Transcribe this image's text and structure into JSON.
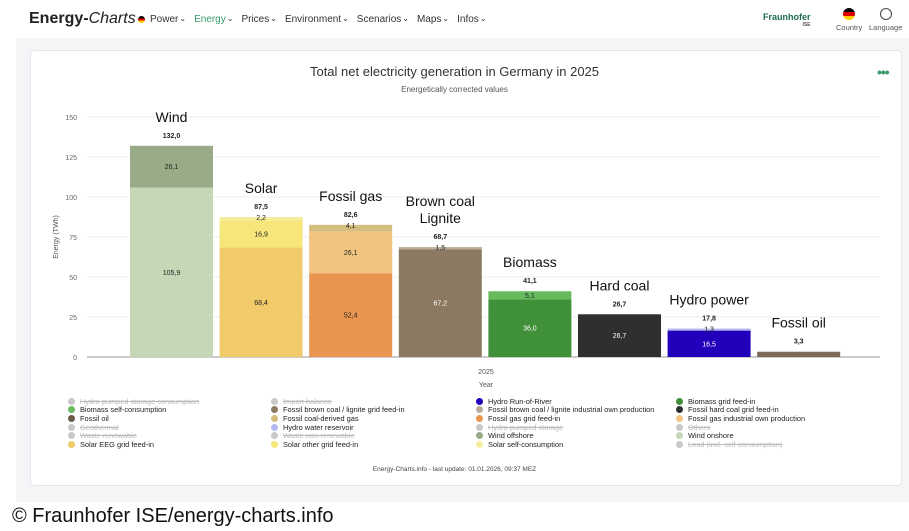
{
  "header": {
    "logo_main": "Energy-",
    "logo_italic": "Charts",
    "nav": [
      "Power",
      "Energy",
      "Prices",
      "Environment",
      "Scenarios",
      "Maps",
      "Infos"
    ],
    "active_nav": "Energy",
    "brand": "Fraunhofer",
    "brand_sub": "ISE",
    "country": "Country",
    "language": "Language"
  },
  "chart_data": {
    "type": "bar",
    "stacked": true,
    "title": "Total net electricity generation in Germany in 2025",
    "subtitle": "Energetically corrected values",
    "xlabel": "Year",
    "x_tick": "2025",
    "ylabel": "Energy (TWh)",
    "ylim": [
      0,
      150
    ],
    "yticks": [
      0,
      25,
      50,
      75,
      100,
      125,
      150
    ],
    "grid": true,
    "categories": [
      {
        "label": "Wind",
        "label2": "",
        "total": "132,0",
        "segments": [
          {
            "name": "Wind onshore",
            "value": 105.9,
            "label": "105,9",
            "color": "#c6d7b8"
          },
          {
            "name": "Wind offshore",
            "value": 26.1,
            "label": "26,1",
            "color": "#9aab88"
          }
        ]
      },
      {
        "label": "Solar",
        "label2": "",
        "total": "87,5",
        "segments": [
          {
            "name": "Solar EEG grid feed-in",
            "value": 68.4,
            "label": "68,4",
            "color": "#f1ca6a"
          },
          {
            "name": "Solar other grid feed-in",
            "value": 16.9,
            "label": "16,9",
            "color": "#f7e77a"
          },
          {
            "name": "Solar self-consumption",
            "value": 2.2,
            "label": "2,2",
            "color": "#f6ed9f"
          }
        ]
      },
      {
        "label": "Fossil gas",
        "label2": "",
        "total": "82,6",
        "segments": [
          {
            "name": "Fossil gas grid feed-in",
            "value": 52.4,
            "label": "52,4",
            "color": "#e8964f"
          },
          {
            "name": "Fossil gas industrial own production",
            "value": 26.1,
            "label": "26,1",
            "color": "#f1c480"
          },
          {
            "name": "Fossil coal-derived gas",
            "value": 4.1,
            "label": "4,1",
            "color": "#d5bd7d"
          }
        ]
      },
      {
        "label": "Brown coal",
        "label2": "Lignite",
        "total": "68,7",
        "segments": [
          {
            "name": "Fossil brown coal / lignite grid feed-in",
            "value": 67.2,
            "label": "67,2",
            "color": "#8c7961"
          },
          {
            "name": "Fossil brown coal / lignite industrial own production",
            "value": 1.5,
            "label": "1,5",
            "color": "#b8ad9a"
          }
        ]
      },
      {
        "label": "Biomass",
        "label2": "",
        "total": "41,1",
        "segments": [
          {
            "name": "Biomass grid feed-in",
            "value": 36.0,
            "label": "36,0",
            "color": "#409039"
          },
          {
            "name": "Biomass self-consumption",
            "value": 5.1,
            "label": "5,1",
            "color": "#67bb5d"
          }
        ]
      },
      {
        "label": "Hard coal",
        "label2": "",
        "total": "26,7",
        "segments": [
          {
            "name": "Fossil hard coal grid feed-in",
            "value": 26.7,
            "label": "26,7",
            "color": "#2f2f2f"
          }
        ]
      },
      {
        "label": "Hydro power",
        "label2": "",
        "total": "17,8",
        "segments": [
          {
            "name": "Hydro Run-of-River",
            "value": 16.5,
            "label": "16,5",
            "color": "#2200bb"
          },
          {
            "name": "Hydro water reservoir",
            "value": 1.3,
            "label": "1,3",
            "color": "#b4b9f0"
          }
        ]
      },
      {
        "label": "Fossil oil",
        "label2": "",
        "total": "3,3",
        "segments": [
          {
            "name": "Fossil oil",
            "value": 3.3,
            "label": "",
            "color": "#7a6a56"
          }
        ]
      }
    ],
    "legend": [
      {
        "name": "Hydro pumped storage consumption",
        "color": "#c8c8c8",
        "hidden": true
      },
      {
        "name": "Import balance",
        "color": "#c8c8c8",
        "hidden": true
      },
      {
        "name": "Hydro Run-of-River",
        "color": "#2200bb"
      },
      {
        "name": "Biomass grid feed-in",
        "color": "#409039"
      },
      {
        "name": "Biomass self-consumption",
        "color": "#67bb5d"
      },
      {
        "name": "Fossil brown coal / lignite grid feed-in",
        "color": "#8c7961"
      },
      {
        "name": "Fossil brown coal / lignite industrial own production",
        "color": "#b8ad9a"
      },
      {
        "name": "Fossil hard coal grid feed-in",
        "color": "#2f2f2f"
      },
      {
        "name": "Fossil oil",
        "color": "#6b5a48"
      },
      {
        "name": "Fossil coal-derived gas",
        "color": "#d5bd7d"
      },
      {
        "name": "Fossil gas grid feed-in",
        "color": "#e8964f"
      },
      {
        "name": "Fossil gas industrial own production",
        "color": "#f1c480"
      },
      {
        "name": "Geothermal",
        "color": "#c8c8c8",
        "hidden": true
      },
      {
        "name": "Hydro water reservoir",
        "color": "#b4b9f0"
      },
      {
        "name": "Hydro pumped storage",
        "color": "#c8c8c8",
        "hidden": true
      },
      {
        "name": "Others",
        "color": "#c8c8c8",
        "hidden": true
      },
      {
        "name": "Waste renewable",
        "color": "#c8c8c8",
        "hidden": true
      },
      {
        "name": "Waste non-renewable",
        "color": "#c8c8c8",
        "hidden": true
      },
      {
        "name": "Wind offshore",
        "color": "#9aab88"
      },
      {
        "name": "Wind onshore",
        "color": "#c6d7b8"
      },
      {
        "name": "Solar EEG grid feed-in",
        "color": "#f1ca6a"
      },
      {
        "name": "Solar other grid feed-in",
        "color": "#f7e77a"
      },
      {
        "name": "Solar self-consumption",
        "color": "#f6ed9f"
      },
      {
        "name": "Load (incl. self-consumption)",
        "color": "#c8c8c8",
        "hidden": true
      }
    ]
  },
  "footer": "Energy-Charts.info - last update: 01.01.2026, 09:37 MEZ",
  "credit": "© Fraunhofer ISE/energy-charts.info",
  "accent": "#3a9a6a"
}
